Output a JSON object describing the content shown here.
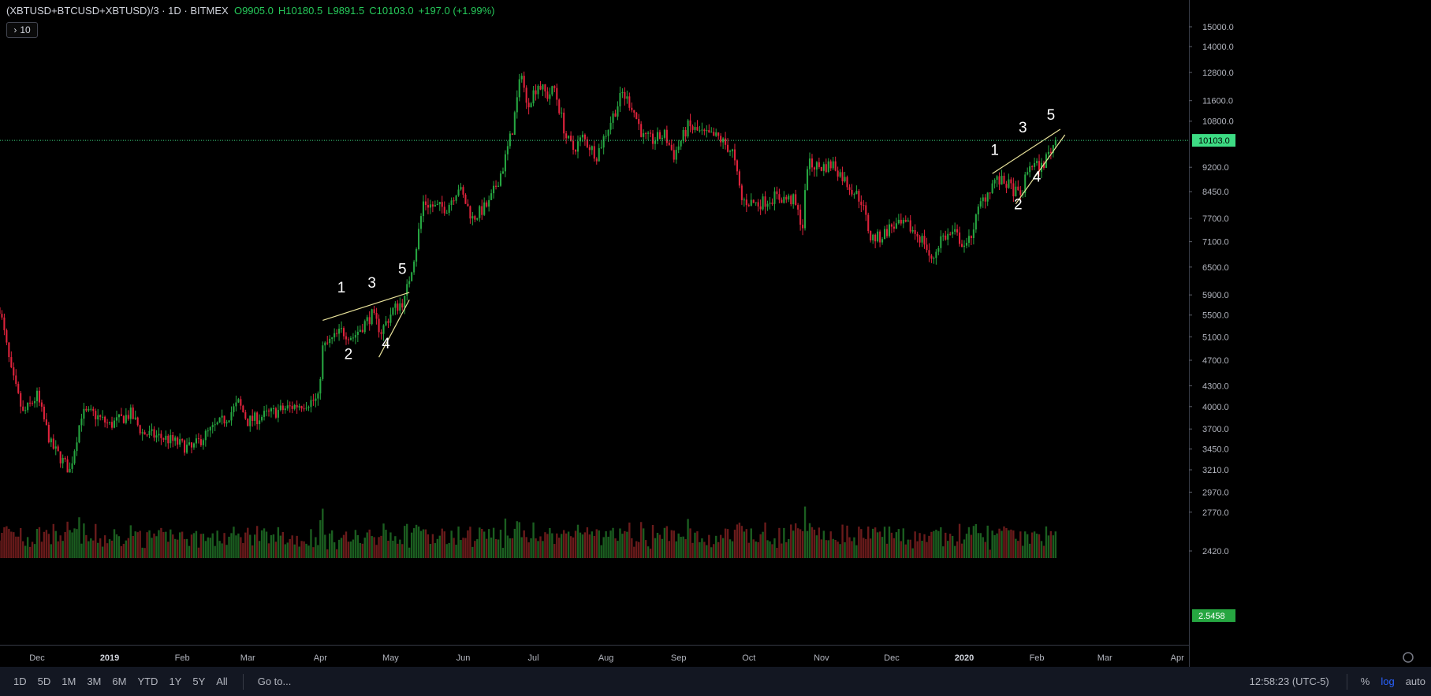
{
  "header": {
    "symbol": "(XBTUSD+BTCUSD+XBTUSD)/3 · 1D · BITMEX",
    "open": "O9905.0",
    "high": "H10180.5",
    "low": "L9891.5",
    "close": "C10103.0",
    "change": "+197.0 (+1.99%)",
    "collapse_count": "10"
  },
  "bottom_bar": {
    "ranges": [
      "1D",
      "5D",
      "1M",
      "3M",
      "6M",
      "YTD",
      "1Y",
      "5Y",
      "All"
    ],
    "goto_label": "Go to...",
    "clock": "12:58:23 (UTC-5)",
    "percent_label": "%",
    "log_label": "log",
    "auto_label": "auto"
  },
  "colors": {
    "up": "#26a641",
    "down": "#e0233c",
    "up_volume": "#1b5e20",
    "down_volume": "#6a1b1b",
    "last_price_line": "#3ddc84",
    "pattern_lines": "#e8e29a",
    "background": "#000000"
  },
  "chart_data": {
    "type": "candlestick",
    "scale": "log",
    "last_price": 10103.0,
    "last_price_label": "10103.0",
    "volume_label": "2.5458",
    "y_ticks": [
      "15000.0",
      "14000.0",
      "12800.0",
      "11600.0",
      "10800.0",
      "9200.0",
      "8450.0",
      "7700.0",
      "7100.0",
      "6500.0",
      "5900.0",
      "5500.0",
      "5100.0",
      "4700.0",
      "4300.0",
      "4000.0",
      "3700.0",
      "3450.0",
      "3210.0",
      "2970.0",
      "2770.0",
      "2420.0"
    ],
    "x_ticks": [
      "Dec",
      "2019",
      "Feb",
      "Mar",
      "Apr",
      "May",
      "Jun",
      "Jul",
      "Aug",
      "Sep",
      "Oct",
      "Nov",
      "Dec",
      "2020",
      "Feb",
      "Mar",
      "Apr"
    ],
    "path": [
      [
        "2018-11-15",
        5650
      ],
      [
        "2018-11-20",
        4500
      ],
      [
        "2018-11-25",
        3900
      ],
      [
        "2018-12-01",
        4150
      ],
      [
        "2018-12-07",
        3500
      ],
      [
        "2018-12-15",
        3200
      ],
      [
        "2018-12-20",
        3900
      ],
      [
        "2018-12-25",
        3900
      ],
      [
        "2019-01-01",
        3750
      ],
      [
        "2019-01-10",
        3900
      ],
      [
        "2019-01-15",
        3650
      ],
      [
        "2019-01-25",
        3580
      ],
      [
        "2019-02-05",
        3450
      ],
      [
        "2019-02-10",
        3600
      ],
      [
        "2019-02-20",
        3850
      ],
      [
        "2019-02-25",
        4050
      ],
      [
        "2019-03-01",
        3800
      ],
      [
        "2019-03-10",
        3900
      ],
      [
        "2019-03-20",
        4000
      ],
      [
        "2019-03-31",
        4100
      ],
      [
        "2019-04-02",
        4900
      ],
      [
        "2019-04-10",
        5200
      ],
      [
        "2019-04-15",
        5100
      ],
      [
        "2019-04-23",
        5500
      ],
      [
        "2019-04-27",
        5200
      ],
      [
        "2019-05-02",
        5600
      ],
      [
        "2019-05-07",
        5800
      ],
      [
        "2019-05-12",
        7000
      ],
      [
        "2019-05-15",
        8150
      ],
      [
        "2019-05-20",
        8000
      ],
      [
        "2019-05-25",
        8000
      ],
      [
        "2019-05-30",
        8600
      ],
      [
        "2019-06-05",
        7700
      ],
      [
        "2019-06-12",
        8100
      ],
      [
        "2019-06-18",
        9200
      ],
      [
        "2019-06-22",
        10500
      ],
      [
        "2019-06-26",
        12900
      ],
      [
        "2019-06-28",
        11400
      ],
      [
        "2019-07-03",
        12300
      ],
      [
        "2019-07-07",
        11800
      ],
      [
        "2019-07-10",
        12100
      ],
      [
        "2019-07-15",
        10200
      ],
      [
        "2019-07-18",
        9800
      ],
      [
        "2019-07-22",
        10200
      ],
      [
        "2019-07-28",
        9600
      ],
      [
        "2019-08-03",
        10800
      ],
      [
        "2019-08-08",
        11900
      ],
      [
        "2019-08-12",
        11400
      ],
      [
        "2019-08-17",
        10200
      ],
      [
        "2019-08-21",
        10100
      ],
      [
        "2019-08-26",
        10300
      ],
      [
        "2019-08-30",
        9600
      ],
      [
        "2019-09-05",
        10600
      ],
      [
        "2019-09-12",
        10300
      ],
      [
        "2019-09-18",
        10200
      ],
      [
        "2019-09-24",
        9700
      ],
      [
        "2019-09-28",
        8200
      ],
      [
        "2019-10-05",
        8100
      ],
      [
        "2019-10-12",
        8300
      ],
      [
        "2019-10-20",
        8200
      ],
      [
        "2019-10-24",
        7500
      ],
      [
        "2019-10-26",
        9300
      ],
      [
        "2019-11-01",
        9200
      ],
      [
        "2019-11-06",
        9300
      ],
      [
        "2019-11-12",
        8700
      ],
      [
        "2019-11-18",
        8200
      ],
      [
        "2019-11-22",
        7200
      ],
      [
        "2019-11-26",
        7200
      ],
      [
        "2019-12-01",
        7500
      ],
      [
        "2019-12-08",
        7500
      ],
      [
        "2019-12-15",
        7100
      ],
      [
        "2019-12-18",
        6600
      ],
      [
        "2019-12-22",
        7200
      ],
      [
        "2019-12-28",
        7300
      ],
      [
        "2020-01-02",
        6950
      ],
      [
        "2020-01-08",
        8100
      ],
      [
        "2020-01-14",
        8800
      ],
      [
        "2020-01-19",
        8700
      ],
      [
        "2020-01-25",
        8300
      ],
      [
        "2020-01-29",
        9300
      ],
      [
        "2020-02-03",
        9200
      ],
      [
        "2020-02-09",
        10103
      ]
    ]
  },
  "annotations": [
    {
      "label": "1",
      "date": "2019-04-10",
      "price": 5950
    },
    {
      "label": "2",
      "date": "2019-04-13",
      "price": 4720
    },
    {
      "label": "3",
      "date": "2019-04-23",
      "price": 6050
    },
    {
      "label": "4",
      "date": "2019-04-29",
      "price": 4900
    },
    {
      "label": "5",
      "date": "2019-05-06",
      "price": 6350
    },
    {
      "label": "1",
      "date": "2020-01-14",
      "price": 9600
    },
    {
      "label": "2",
      "date": "2020-01-24",
      "price": 7950
    },
    {
      "label": "3",
      "date": "2020-01-26",
      "price": 10380
    },
    {
      "label": "4",
      "date": "2020-02-01",
      "price": 8750
    },
    {
      "label": "5",
      "date": "2020-02-07",
      "price": 10850
    }
  ],
  "pattern_lines": [
    [
      [
        "2019-04-02",
        5400
      ],
      [
        "2019-05-09",
        5950
      ]
    ],
    [
      [
        "2019-04-26",
        4750
      ],
      [
        "2019-05-09",
        5800
      ]
    ],
    [
      [
        "2020-01-13",
        9000
      ],
      [
        "2020-02-11",
        10500
      ]
    ],
    [
      [
        "2020-01-23",
        8100
      ],
      [
        "2020-02-13",
        10300
      ]
    ]
  ]
}
